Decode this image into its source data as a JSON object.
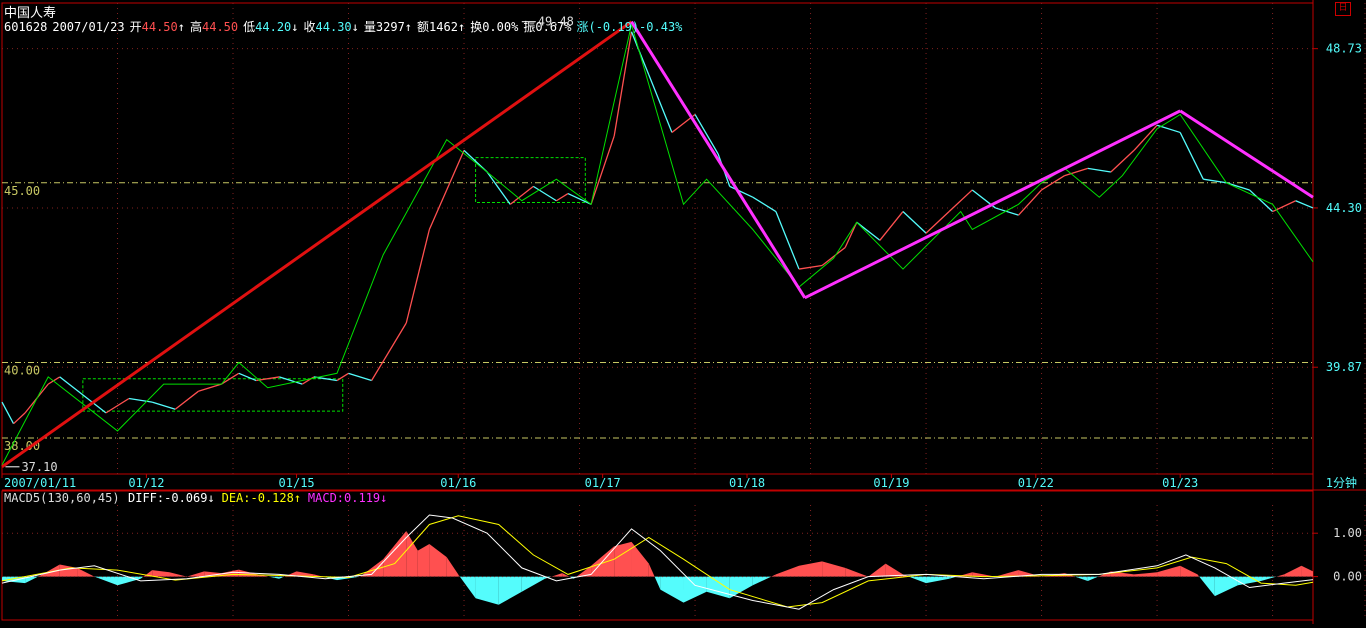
{
  "header": {
    "stock_name": "中国人寿",
    "code": "601628",
    "date": "2007/01/23",
    "open": {
      "label": "开",
      "value": "44.50",
      "arrow": "↑"
    },
    "high": {
      "label": "高",
      "value": "44.50",
      "arrow": "↑"
    },
    "low": {
      "label": "低",
      "value": "44.20",
      "arrow": "↓"
    },
    "close": {
      "label": "收",
      "value": "44.30",
      "arrow": "↓"
    },
    "volume": {
      "label": "量",
      "value": "3297",
      "arrow": "↑"
    },
    "amount": {
      "label": "额",
      "value": "1462",
      "arrow": "↑"
    },
    "turnover": {
      "label": "换",
      "value": "0.00%"
    },
    "amplitude": {
      "label": "振",
      "value": "0.67%"
    },
    "change": {
      "label": "涨",
      "value": "(-0.19)-0.43%"
    }
  },
  "period_label": "1分钟",
  "minimize_glyph": "日",
  "colors": {
    "up": "#ff5050",
    "down": "#54fcfc",
    "zigzag": "#00e000",
    "trend_up": "#e01010",
    "trend_down": "#ff30ff",
    "hline": "#c8c864",
    "axis": "#c00000",
    "diff": "#ffffff",
    "dea": "#ffff00"
  },
  "chart_data": [
    {
      "type": "line",
      "description_of_series": "1-minute price with zigzag overlay",
      "x_tick_labels": [
        "2007/01/11",
        "01/12",
        "01/15",
        "01/16",
        "01/17",
        "01/18",
        "01/19",
        "01/22",
        "01/23"
      ],
      "y_tick_labels_right": [
        "48.73",
        "44.30",
        "39.87"
      ],
      "y_ticks_right": [
        48.73,
        44.3,
        39.87
      ],
      "y_levels_left": [
        "45.00",
        "40.00",
        "38.00"
      ],
      "horizontal_levels": [
        45.0,
        40.0,
        37.9
      ],
      "ylim": [
        36.9,
        50.0
      ],
      "annotations": [
        {
          "text": "49.48",
          "x": 4.5,
          "y": 49.48
        },
        {
          "text": "37.10",
          "x": 0.03,
          "y": 37.1
        }
      ],
      "price_path": [
        [
          0.0,
          38.9
        ],
        [
          0.1,
          38.3
        ],
        [
          0.2,
          38.6
        ],
        [
          0.4,
          39.4
        ],
        [
          0.5,
          39.6
        ],
        [
          0.7,
          39.1
        ],
        [
          0.9,
          38.6
        ],
        [
          1.1,
          39.0
        ],
        [
          1.3,
          38.9
        ],
        [
          1.5,
          38.7
        ],
        [
          1.7,
          39.2
        ],
        [
          1.9,
          39.4
        ],
        [
          2.05,
          39.7
        ],
        [
          2.2,
          39.5
        ],
        [
          2.4,
          39.6
        ],
        [
          2.6,
          39.4
        ],
        [
          2.7,
          39.6
        ],
        [
          2.9,
          39.5
        ],
        [
          3.0,
          39.7
        ],
        [
          3.2,
          39.5
        ],
        [
          3.5,
          41.1
        ],
        [
          3.7,
          43.7
        ],
        [
          3.85,
          44.8
        ],
        [
          4.0,
          45.9
        ],
        [
          4.2,
          45.3
        ],
        [
          4.4,
          44.4
        ],
        [
          4.6,
          44.9
        ],
        [
          4.8,
          44.5
        ],
        [
          4.9,
          44.7
        ],
        [
          5.1,
          44.4
        ],
        [
          5.3,
          46.3
        ],
        [
          5.45,
          49.2
        ],
        [
          5.6,
          48.0
        ],
        [
          5.8,
          46.4
        ],
        [
          6.0,
          46.9
        ],
        [
          6.2,
          45.8
        ],
        [
          6.3,
          44.9
        ],
        [
          6.5,
          44.6
        ],
        [
          6.7,
          44.2
        ],
        [
          6.9,
          42.6
        ],
        [
          7.1,
          42.7
        ],
        [
          7.3,
          43.2
        ],
        [
          7.4,
          43.9
        ],
        [
          7.6,
          43.4
        ],
        [
          7.8,
          44.2
        ],
        [
          8.0,
          43.6
        ],
        [
          8.2,
          44.2
        ],
        [
          8.4,
          44.8
        ],
        [
          8.6,
          44.3
        ],
        [
          8.8,
          44.1
        ],
        [
          9.0,
          44.8
        ],
        [
          9.2,
          45.2
        ],
        [
          9.4,
          45.4
        ],
        [
          9.6,
          45.3
        ],
        [
          9.8,
          45.9
        ],
        [
          10.0,
          46.6
        ],
        [
          10.2,
          46.4
        ],
        [
          10.4,
          45.1
        ],
        [
          10.6,
          45.0
        ],
        [
          10.8,
          44.8
        ],
        [
          11.0,
          44.2
        ],
        [
          11.2,
          44.5
        ],
        [
          11.35,
          44.3
        ]
      ],
      "zigzag_path": [
        [
          0.0,
          37.15
        ],
        [
          0.4,
          39.6
        ],
        [
          1.0,
          38.1
        ],
        [
          1.4,
          39.4
        ],
        [
          1.9,
          39.4
        ],
        [
          2.05,
          40.0
        ],
        [
          2.3,
          39.3
        ],
        [
          2.9,
          39.7
        ],
        [
          3.3,
          43.0
        ],
        [
          3.85,
          46.2
        ],
        [
          4.2,
          45.3
        ],
        [
          4.5,
          44.5
        ],
        [
          4.8,
          45.1
        ],
        [
          5.1,
          44.4
        ],
        [
          5.45,
          49.4
        ],
        [
          5.9,
          44.4
        ],
        [
          6.1,
          45.1
        ],
        [
          6.5,
          43.7
        ],
        [
          6.9,
          42.1
        ],
        [
          7.2,
          42.9
        ],
        [
          7.4,
          43.9
        ],
        [
          7.8,
          42.6
        ],
        [
          8.3,
          44.2
        ],
        [
          8.4,
          43.7
        ],
        [
          8.8,
          44.4
        ],
        [
          9.0,
          45.0
        ],
        [
          9.2,
          45.4
        ],
        [
          9.5,
          44.6
        ],
        [
          9.7,
          45.2
        ],
        [
          10.0,
          46.5
        ],
        [
          10.2,
          46.9
        ],
        [
          10.6,
          45.0
        ],
        [
          11.0,
          44.4
        ],
        [
          11.35,
          42.8
        ]
      ],
      "trend_lines": [
        {
          "color": "trend_up",
          "points": [
            [
              0.0,
              37.1
            ],
            [
              5.45,
              49.48
            ]
          ]
        },
        {
          "color": "trend_down",
          "points": [
            [
              5.45,
              49.48
            ],
            [
              6.95,
              41.8
            ]
          ]
        },
        {
          "color": "trend_down",
          "points": [
            [
              6.95,
              41.8
            ],
            [
              10.2,
              47.0
            ]
          ]
        },
        {
          "color": "trend_down",
          "points": [
            [
              10.2,
              47.0
            ],
            [
              11.35,
              44.6
            ]
          ]
        }
      ],
      "boxes": [
        {
          "x": [
            0.7,
            2.95
          ],
          "y": [
            38.65,
            39.55
          ]
        },
        {
          "x": [
            4.1,
            5.05
          ],
          "y": [
            44.45,
            45.7
          ]
        }
      ]
    },
    {
      "type": "area",
      "indicator_label": "MACD5(130,60,45)",
      "legend": [
        {
          "text": "DIFF:-0.069↓",
          "color": "diff"
        },
        {
          "text": "DEA:-0.128↑",
          "color": "dea"
        },
        {
          "text": "MACD:0.119↓",
          "color": "trend_down"
        }
      ],
      "y_tick_labels_right": [
        "1.00",
        "0.00"
      ],
      "y_ticks_right": [
        1.0,
        0.0
      ],
      "ylim": [
        -1.0,
        1.65
      ],
      "macd_hist": [
        [
          0.0,
          -0.1
        ],
        [
          0.2,
          -0.15
        ],
        [
          0.35,
          0.05
        ],
        [
          0.5,
          0.28
        ],
        [
          0.65,
          0.2
        ],
        [
          0.8,
          0.0
        ],
        [
          1.0,
          -0.2
        ],
        [
          1.2,
          -0.05
        ],
        [
          1.3,
          0.15
        ],
        [
          1.45,
          0.1
        ],
        [
          1.6,
          0.0
        ],
        [
          1.75,
          0.12
        ],
        [
          1.9,
          0.08
        ],
        [
          2.05,
          0.16
        ],
        [
          2.2,
          0.06
        ],
        [
          2.4,
          -0.05
        ],
        [
          2.55,
          0.12
        ],
        [
          2.7,
          0.05
        ],
        [
          2.9,
          -0.08
        ],
        [
          3.1,
          0.0
        ],
        [
          3.3,
          0.4
        ],
        [
          3.5,
          1.05
        ],
        [
          3.6,
          0.6
        ],
        [
          3.7,
          0.75
        ],
        [
          3.85,
          0.45
        ],
        [
          3.95,
          0.05
        ],
        [
          4.1,
          -0.5
        ],
        [
          4.3,
          -0.65
        ],
        [
          4.5,
          -0.35
        ],
        [
          4.7,
          -0.05
        ],
        [
          4.85,
          0.08
        ],
        [
          4.95,
          -0.05
        ],
        [
          5.1,
          0.25
        ],
        [
          5.3,
          0.7
        ],
        [
          5.45,
          0.8
        ],
        [
          5.6,
          0.3
        ],
        [
          5.7,
          -0.3
        ],
        [
          5.9,
          -0.6
        ],
        [
          6.1,
          -0.35
        ],
        [
          6.3,
          -0.5
        ],
        [
          6.5,
          -0.2
        ],
        [
          6.7,
          0.05
        ],
        [
          6.9,
          0.25
        ],
        [
          7.1,
          0.35
        ],
        [
          7.3,
          0.2
        ],
        [
          7.5,
          0.0
        ],
        [
          7.65,
          0.3
        ],
        [
          7.8,
          0.05
        ],
        [
          8.0,
          -0.15
        ],
        [
          8.2,
          -0.05
        ],
        [
          8.4,
          0.1
        ],
        [
          8.6,
          0.0
        ],
        [
          8.8,
          0.15
        ],
        [
          9.0,
          0.0
        ],
        [
          9.2,
          0.08
        ],
        [
          9.4,
          -0.1
        ],
        [
          9.6,
          0.12
        ],
        [
          9.8,
          0.05
        ],
        [
          10.0,
          0.1
        ],
        [
          10.2,
          0.25
        ],
        [
          10.35,
          0.05
        ],
        [
          10.5,
          -0.45
        ],
        [
          10.7,
          -0.2
        ],
        [
          10.9,
          -0.1
        ],
        [
          11.1,
          0.05
        ],
        [
          11.25,
          0.25
        ],
        [
          11.35,
          0.12
        ]
      ],
      "diff_path": [
        [
          0.0,
          -0.15
        ],
        [
          0.5,
          0.15
        ],
        [
          0.8,
          0.25
        ],
        [
          1.2,
          -0.1
        ],
        [
          1.6,
          -0.05
        ],
        [
          2.0,
          0.1
        ],
        [
          2.4,
          0.05
        ],
        [
          2.8,
          -0.05
        ],
        [
          3.2,
          0.05
        ],
        [
          3.5,
          0.9
        ],
        [
          3.7,
          1.42
        ],
        [
          3.9,
          1.35
        ],
        [
          4.2,
          1.0
        ],
        [
          4.5,
          0.2
        ],
        [
          4.8,
          -0.1
        ],
        [
          5.1,
          0.05
        ],
        [
          5.45,
          1.1
        ],
        [
          5.7,
          0.6
        ],
        [
          6.0,
          -0.2
        ],
        [
          6.5,
          -0.55
        ],
        [
          6.9,
          -0.75
        ],
        [
          7.2,
          -0.3
        ],
        [
          7.5,
          0.0
        ],
        [
          8.0,
          0.05
        ],
        [
          8.5,
          -0.05
        ],
        [
          9.0,
          0.05
        ],
        [
          9.5,
          0.05
        ],
        [
          10.0,
          0.25
        ],
        [
          10.25,
          0.5
        ],
        [
          10.5,
          0.2
        ],
        [
          10.8,
          -0.25
        ],
        [
          11.1,
          -0.15
        ],
        [
          11.35,
          -0.07
        ]
      ],
      "dea_path": [
        [
          0.0,
          -0.1
        ],
        [
          0.6,
          0.2
        ],
        [
          1.0,
          0.15
        ],
        [
          1.5,
          -0.08
        ],
        [
          2.0,
          0.05
        ],
        [
          2.5,
          0.02
        ],
        [
          3.0,
          -0.02
        ],
        [
          3.4,
          0.3
        ],
        [
          3.7,
          1.2
        ],
        [
          3.95,
          1.4
        ],
        [
          4.3,
          1.2
        ],
        [
          4.6,
          0.5
        ],
        [
          4.9,
          0.05
        ],
        [
          5.3,
          0.4
        ],
        [
          5.6,
          0.9
        ],
        [
          5.9,
          0.4
        ],
        [
          6.3,
          -0.3
        ],
        [
          6.8,
          -0.7
        ],
        [
          7.1,
          -0.6
        ],
        [
          7.5,
          -0.1
        ],
        [
          8.0,
          0.05
        ],
        [
          8.5,
          0.0
        ],
        [
          9.0,
          0.02
        ],
        [
          9.5,
          0.05
        ],
        [
          10.0,
          0.2
        ],
        [
          10.3,
          0.45
        ],
        [
          10.6,
          0.3
        ],
        [
          10.9,
          -0.15
        ],
        [
          11.2,
          -0.2
        ],
        [
          11.35,
          -0.13
        ]
      ]
    }
  ]
}
